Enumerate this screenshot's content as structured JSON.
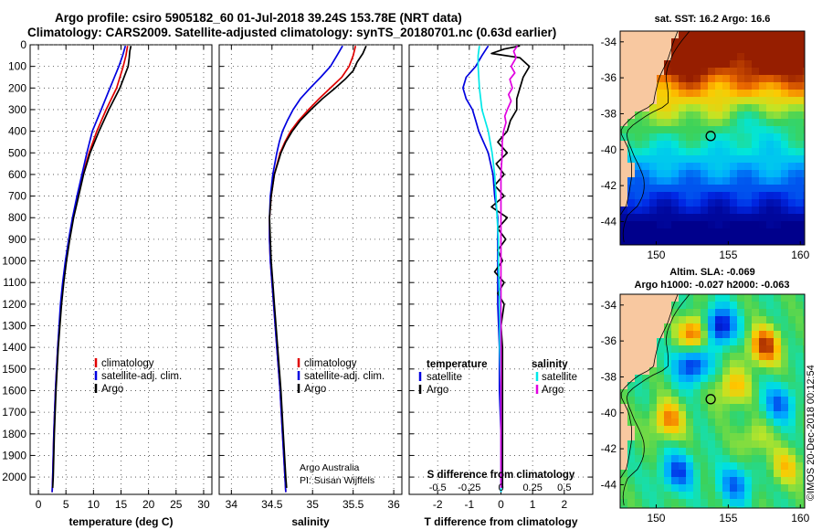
{
  "title": {
    "line1": "Argo profile: csiro 5905182_60 01-Jul-2018 39.24S 153.78E (NRT data)",
    "line2": "Climatology: CARS2009. Satellite-adjusted climatology: synTS_20180701.nc (0.63d earlier)"
  },
  "colors": {
    "climatology": "#e00000",
    "satellite": "#0000e0",
    "argo": "#000000",
    "sal_satellite": "#00e8e8",
    "sal_argo": "#e000e0"
  },
  "depth_axis": {
    "ylim": [
      0,
      2080
    ],
    "ticks": [
      "0",
      "100",
      "200",
      "300",
      "400",
      "500",
      "600",
      "700",
      "800",
      "900",
      "1000",
      "1100",
      "1200",
      "1300",
      "1400",
      "1500",
      "1600",
      "1700",
      "1800",
      "1900",
      "2000"
    ]
  },
  "chart_data": [
    {
      "type": "line",
      "name": "temperature",
      "xlabel": "temperature (deg C)",
      "xlim": [
        -1.5,
        31.5
      ],
      "xticks": [
        "0",
        "5",
        "10",
        "15",
        "20",
        "25",
        "30"
      ],
      "legend": [
        "climatology",
        "satellite-adj. clim.",
        "Argo"
      ],
      "series": [
        {
          "name": "climatology",
          "depth": [
            5,
            50,
            100,
            200,
            300,
            400,
            500,
            600,
            700,
            800,
            900,
            1000,
            1100,
            1200,
            1400,
            1600,
            1800,
            2000,
            2070
          ],
          "values": [
            16.2,
            15.9,
            15.4,
            14.2,
            12.3,
            10.6,
            9.2,
            8.1,
            7.2,
            6.3,
            5.6,
            5.0,
            4.5,
            4.1,
            3.5,
            3.1,
            2.8,
            2.6,
            2.5
          ]
        },
        {
          "name": "satellite-adj. clim.",
          "depth": [
            5,
            50,
            100,
            200,
            300,
            400,
            500,
            600,
            700,
            800,
            900,
            1000,
            1100,
            1200,
            1400,
            1600,
            1800,
            2000,
            2070
          ],
          "values": [
            15.8,
            15.3,
            14.6,
            13.0,
            11.4,
            9.8,
            8.8,
            7.9,
            7.0,
            6.2,
            5.5,
            4.9,
            4.4,
            4.0,
            3.5,
            3.1,
            2.8,
            2.6,
            2.5
          ]
        },
        {
          "name": "Argo",
          "depth": [
            5,
            30,
            60,
            100,
            200,
            300,
            400,
            500,
            600,
            700,
            800,
            900,
            1000,
            1100,
            1200,
            1400,
            1600,
            1800,
            2000,
            2050
          ],
          "values": [
            16.8,
            16.6,
            16.5,
            16.3,
            14.8,
            12.8,
            11.0,
            9.4,
            8.2,
            7.3,
            6.4,
            5.7,
            5.1,
            4.6,
            4.2,
            3.6,
            3.2,
            2.9,
            2.7,
            2.6
          ]
        }
      ]
    },
    {
      "type": "line",
      "name": "salinity",
      "xlabel": "salinity",
      "xlim": [
        33.85,
        36.1
      ],
      "xticks": [
        "34",
        "34.5",
        "35",
        "35.5",
        "36"
      ],
      "legend": [
        "climatology",
        "satellite-adj. clim.",
        "Argo"
      ],
      "credit": [
        "Argo Australia",
        "PI: Susan Wijffels"
      ],
      "series": [
        {
          "name": "climatology",
          "depth": [
            5,
            50,
            100,
            150,
            200,
            250,
            300,
            350,
            400,
            450,
            500,
            600,
            700,
            800,
            900,
            1000,
            1100,
            1200,
            1400,
            1600,
            1800,
            2000,
            2070
          ],
          "values": [
            35.53,
            35.5,
            35.45,
            35.36,
            35.22,
            35.08,
            34.95,
            34.83,
            34.73,
            34.66,
            34.6,
            34.53,
            34.49,
            34.47,
            34.47,
            34.48,
            34.5,
            34.52,
            34.56,
            34.6,
            34.63,
            34.66,
            34.67
          ]
        },
        {
          "name": "satellite-adj. clim.",
          "depth": [
            5,
            50,
            100,
            150,
            200,
            250,
            300,
            350,
            400,
            450,
            500,
            600,
            700,
            800,
            900,
            1000,
            1100,
            1200,
            1400,
            1600,
            1800,
            2000,
            2070
          ],
          "values": [
            35.37,
            35.3,
            35.22,
            35.1,
            34.97,
            34.85,
            34.76,
            34.69,
            34.63,
            34.59,
            34.56,
            34.51,
            34.48,
            34.47,
            34.47,
            34.48,
            34.5,
            34.52,
            34.56,
            34.6,
            34.63,
            34.66,
            34.67
          ]
        },
        {
          "name": "Argo",
          "depth": [
            5,
            40,
            80,
            120,
            160,
            200,
            250,
            300,
            350,
            400,
            450,
            500,
            600,
            700,
            800,
            900,
            1000,
            1100,
            1200,
            1400,
            1600,
            1800,
            2000,
            2050
          ],
          "values": [
            35.66,
            35.62,
            35.55,
            35.5,
            35.4,
            35.28,
            35.12,
            34.98,
            34.85,
            34.75,
            34.67,
            34.61,
            34.53,
            34.49,
            34.47,
            34.48,
            34.49,
            34.51,
            34.53,
            34.57,
            34.61,
            34.64,
            34.67,
            34.68
          ]
        }
      ]
    },
    {
      "type": "line",
      "name": "difference",
      "xlabel": "T difference from climatology",
      "xlim": [
        -2.9,
        2.9
      ],
      "xticks": [
        "-2",
        "-1",
        "0",
        "1",
        "2"
      ],
      "top_label": "S difference from climatology",
      "top_xticks": [
        "-0.5",
        "-0.25",
        "0",
        "0.25",
        "0.5"
      ],
      "legend_t_title": "temperature",
      "legend_s_title": "salinity",
      "legend_t": [
        "satellite",
        "Argo"
      ],
      "legend_s": [
        "satellite",
        "Argo"
      ],
      "series": [
        {
          "name": "T satellite",
          "depth": [
            5,
            50,
            100,
            150,
            200,
            250,
            300,
            350,
            400,
            500,
            600,
            700,
            800,
            900,
            1000,
            1100,
            1200,
            1400,
            1600,
            1800,
            2000,
            2070
          ],
          "values": [
            -0.4,
            -0.6,
            -0.8,
            -1.1,
            -1.2,
            -1.1,
            -0.9,
            -0.8,
            -0.7,
            -0.4,
            -0.25,
            -0.2,
            -0.1,
            -0.1,
            -0.1,
            -0.1,
            -0.1,
            -0.05,
            -0.05,
            0,
            0,
            0
          ]
        },
        {
          "name": "T Argo",
          "depth": [
            5,
            20,
            40,
            60,
            100,
            150,
            200,
            250,
            300,
            350,
            400,
            450,
            500,
            550,
            600,
            650,
            700,
            750,
            800,
            850,
            900,
            950,
            1000,
            1050,
            1100,
            1150,
            1200,
            1300,
            1400,
            1600,
            1800,
            2000,
            2050
          ],
          "values": [
            0.6,
            0.1,
            -0.3,
            0.6,
            0.9,
            0.7,
            0.6,
            0.5,
            0.5,
            0.3,
            0.2,
            -0.1,
            0.2,
            -0.15,
            0.1,
            -0.2,
            0.1,
            -0.3,
            0.2,
            -0.1,
            0.15,
            -0.1,
            0.05,
            -0.2,
            0.1,
            -0.1,
            0.1,
            0.0,
            0.05,
            0.05,
            0.05,
            0.05,
            0.05
          ]
        },
        {
          "name": "S satellite",
          "depth": [
            5,
            50,
            100,
            200,
            300,
            400,
            500,
            600,
            700,
            800,
            900,
            1000,
            1200,
            1400,
            1600,
            1800,
            2000,
            2070
          ],
          "values": [
            -0.17,
            -0.18,
            -0.18,
            -0.17,
            -0.15,
            -0.1,
            -0.07,
            -0.05,
            -0.04,
            -0.03,
            -0.02,
            -0.02,
            -0.01,
            -0.01,
            0,
            0,
            0,
            0
          ]
        },
        {
          "name": "S Argo",
          "depth": [
            5,
            30,
            60,
            100,
            130,
            160,
            200,
            230,
            260,
            300,
            330,
            360,
            400,
            450,
            500,
            600,
            700,
            800,
            900,
            1000,
            1200,
            1400,
            1600,
            1800,
            2000,
            2050
          ],
          "values": [
            0.13,
            0.1,
            0.12,
            0.08,
            0.11,
            0.07,
            0.09,
            0.06,
            0.08,
            0.05,
            0.03,
            0.04,
            0.02,
            0.01,
            0.01,
            0.0,
            0.0,
            0.0,
            0.0,
            0.0,
            0.0,
            0.0,
            0.0,
            0.0,
            0.0,
            0.0
          ]
        }
      ]
    },
    {
      "type": "heatmap",
      "name": "sst_map",
      "title": "sat. SST: 16.2 Argo: 16.6",
      "xticks": [
        "150",
        "155",
        "160"
      ],
      "yticks": [
        "-34",
        "-36",
        "-38",
        "-40",
        "-42",
        "-44"
      ],
      "xlim": [
        147.5,
        160.3
      ],
      "ylim": [
        -45.3,
        -33.4
      ],
      "marker": {
        "lon": 153.78,
        "lat": -39.24
      }
    },
    {
      "type": "heatmap",
      "name": "sla_map",
      "title_line1": "Altim. SLA: -0.069",
      "title_line2": "Argo h1000: -0.027 h2000: -0.063",
      "xticks": [
        "150",
        "155",
        "160"
      ],
      "yticks": [
        "-34",
        "-36",
        "-38",
        "-40",
        "-42",
        "-44"
      ],
      "xlim": [
        147.5,
        160.3
      ],
      "ylim": [
        -45.3,
        -33.4
      ],
      "marker": {
        "lon": 153.78,
        "lat": -39.24
      }
    }
  ],
  "credit": "©IMOS 20-Dec-2018 00:12:54"
}
